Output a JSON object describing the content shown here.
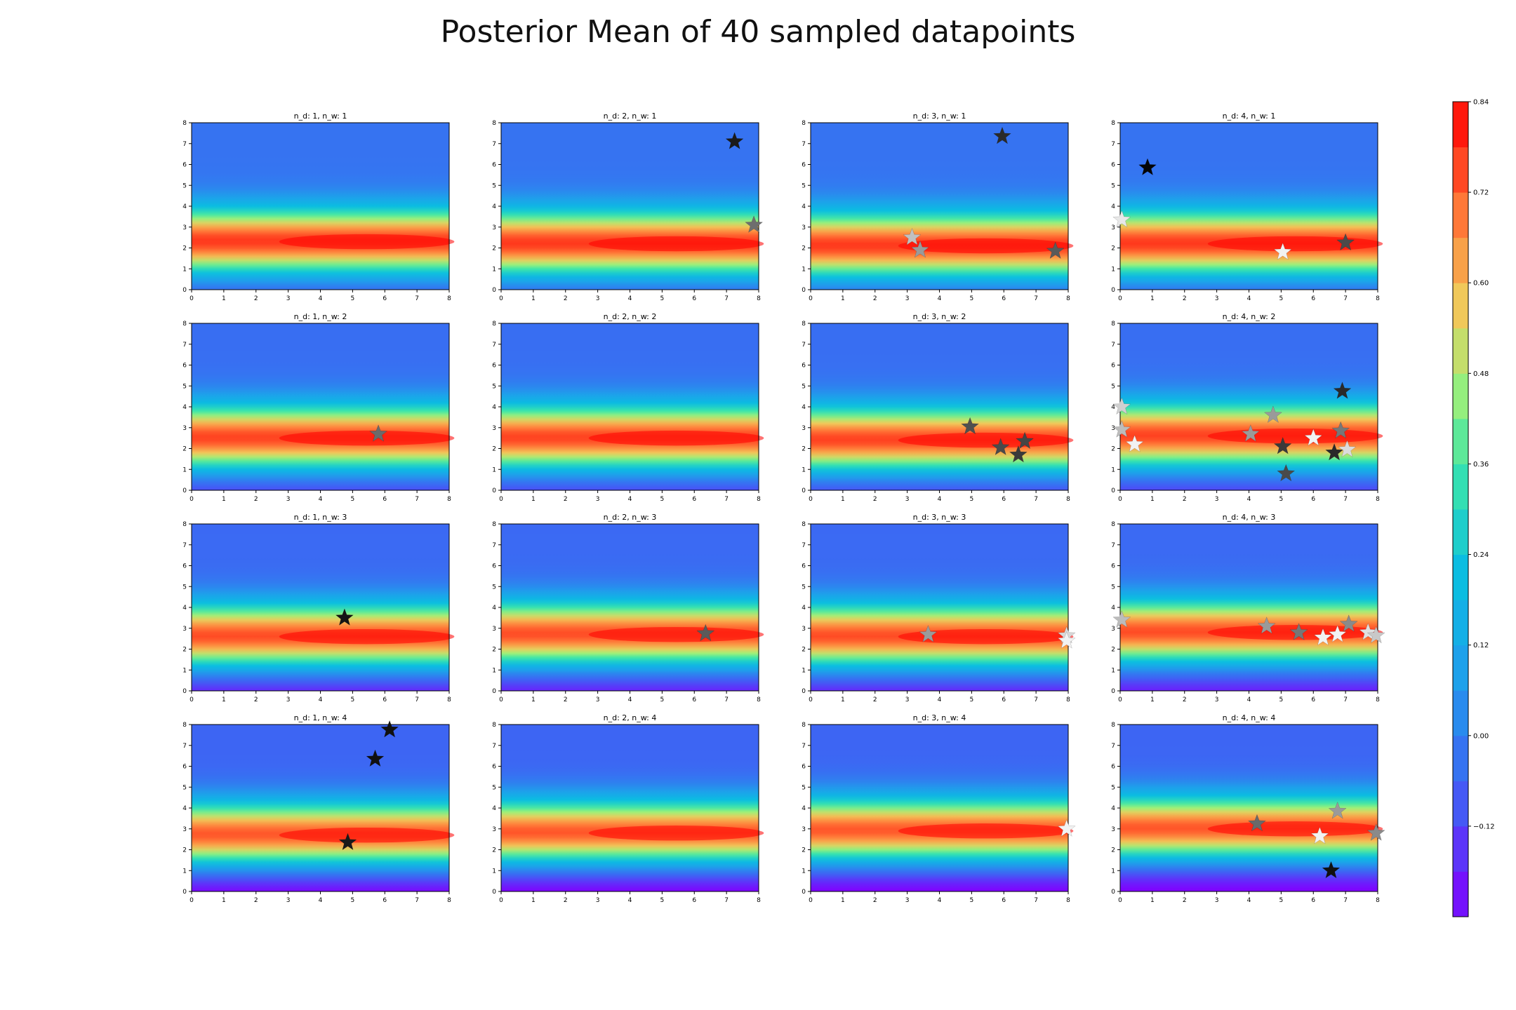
{
  "title": "Posterior Mean of 40 sampled datapoints",
  "chart_data": {
    "type": "heatmap",
    "title": "Posterior Mean of 40 sampled datapoints",
    "grid": false,
    "colormap": "rainbow",
    "xlim": [
      0,
      8
    ],
    "ylim": [
      0,
      8
    ],
    "x_ticks": [
      0,
      1,
      2,
      3,
      4,
      5,
      6,
      7,
      8
    ],
    "y_ticks": [
      0,
      1,
      2,
      3,
      4,
      5,
      6,
      7,
      8
    ],
    "colorbar": {
      "min": -0.24,
      "max": 0.84,
      "placement": "right",
      "ticks": [
        "0.84",
        "0.72",
        "0.60",
        "0.48",
        "0.36",
        "0.24",
        "0.12",
        "0.00",
        "−0.12"
      ],
      "tick_values": [
        0.84,
        0.72,
        0.6,
        0.48,
        0.36,
        0.24,
        0.12,
        0.0,
        -0.12
      ]
    },
    "panels": [
      {
        "title": "n_d: 1, n_w: 1",
        "peak_y": 2.3,
        "points": []
      },
      {
        "title": "n_d: 2, n_w: 1",
        "peak_y": 2.2,
        "points": [
          {
            "x": 7.25,
            "y": 7.1,
            "shade": "#1a1a1a"
          },
          {
            "x": 7.85,
            "y": 3.1,
            "shade": "#6e6e6e"
          }
        ]
      },
      {
        "title": "n_d: 3, n_w: 1",
        "peak_y": 2.1,
        "points": [
          {
            "x": 5.95,
            "y": 7.35,
            "shade": "#2a2a2a"
          },
          {
            "x": 3.15,
            "y": 2.5,
            "shade": "#c0c0c0"
          },
          {
            "x": 3.4,
            "y": 1.9,
            "shade": "#9a9a9a"
          },
          {
            "x": 7.6,
            "y": 1.85,
            "shade": "#5a5a5a"
          }
        ]
      },
      {
        "title": "n_d: 4, n_w: 1",
        "peak_y": 2.2,
        "points": [
          {
            "x": 0.85,
            "y": 5.85,
            "shade": "#050505"
          },
          {
            "x": 0.05,
            "y": 3.35,
            "shade": "#e8e8e8"
          },
          {
            "x": 5.05,
            "y": 1.8,
            "shade": "#f2f2f2"
          },
          {
            "x": 7.0,
            "y": 2.25,
            "shade": "#4a4a4a"
          }
        ]
      },
      {
        "title": "n_d: 1, n_w: 2",
        "peak_y": 2.5,
        "points": [
          {
            "x": 5.8,
            "y": 2.7,
            "shade": "#6a6a6a"
          }
        ]
      },
      {
        "title": "n_d: 2, n_w: 2",
        "peak_y": 2.5,
        "points": []
      },
      {
        "title": "n_d: 3, n_w: 2",
        "peak_y": 2.4,
        "points": [
          {
            "x": 4.95,
            "y": 3.05,
            "shade": "#505050"
          },
          {
            "x": 5.9,
            "y": 2.05,
            "shade": "#4a4a4a"
          },
          {
            "x": 6.45,
            "y": 1.7,
            "shade": "#3a3a3a"
          },
          {
            "x": 6.65,
            "y": 2.35,
            "shade": "#454545"
          }
        ]
      },
      {
        "title": "n_d: 4, n_w: 2",
        "peak_y": 2.6,
        "points": [
          {
            "x": 6.9,
            "y": 4.75,
            "shade": "#2a2a2a"
          },
          {
            "x": 0.05,
            "y": 4.0,
            "shade": "#d0d0d0"
          },
          {
            "x": 4.75,
            "y": 3.6,
            "shade": "#9a9a9a"
          },
          {
            "x": 0.05,
            "y": 2.9,
            "shade": "#bcbcbc"
          },
          {
            "x": 4.05,
            "y": 2.7,
            "shade": "#9a9a9a"
          },
          {
            "x": 6.85,
            "y": 2.85,
            "shade": "#777777"
          },
          {
            "x": 6.0,
            "y": 2.5,
            "shade": "#f2f2f2"
          },
          {
            "x": 0.45,
            "y": 2.2,
            "shade": "#f2f2f2"
          },
          {
            "x": 5.05,
            "y": 2.1,
            "shade": "#3a3a3a"
          },
          {
            "x": 7.05,
            "y": 1.95,
            "shade": "#dcdcdc"
          },
          {
            "x": 6.65,
            "y": 1.8,
            "shade": "#2a2a2a"
          },
          {
            "x": 5.15,
            "y": 0.8,
            "shade": "#4a4a4a"
          }
        ]
      },
      {
        "title": "n_d: 1, n_w: 3",
        "peak_y": 2.6,
        "points": [
          {
            "x": 4.75,
            "y": 3.5,
            "shade": "#151515"
          }
        ]
      },
      {
        "title": "n_d: 2, n_w: 3",
        "peak_y": 2.7,
        "points": [
          {
            "x": 6.35,
            "y": 2.75,
            "shade": "#5a5a5a"
          }
        ]
      },
      {
        "title": "n_d: 3, n_w: 3",
        "peak_y": 2.6,
        "points": [
          {
            "x": 3.65,
            "y": 2.7,
            "shade": "#9a9a9a"
          },
          {
            "x": 7.95,
            "y": 2.65,
            "shade": "#d8d8d8"
          },
          {
            "x": 7.95,
            "y": 2.4,
            "shade": "#f2f2f2"
          }
        ]
      },
      {
        "title": "n_d: 4, n_w: 3",
        "peak_y": 2.8,
        "points": [
          {
            "x": 0.05,
            "y": 3.4,
            "shade": "#bcbcbc"
          },
          {
            "x": 4.55,
            "y": 3.1,
            "shade": "#9a9a9a"
          },
          {
            "x": 7.1,
            "y": 3.2,
            "shade": "#8a8a8a"
          },
          {
            "x": 5.55,
            "y": 2.8,
            "shade": "#777777"
          },
          {
            "x": 6.3,
            "y": 2.55,
            "shade": "#f2f2f2"
          },
          {
            "x": 6.75,
            "y": 2.7,
            "shade": "#f2f2f2"
          },
          {
            "x": 7.7,
            "y": 2.8,
            "shade": "#e0e0e0"
          },
          {
            "x": 7.95,
            "y": 2.65,
            "shade": "#c8c8c8"
          }
        ]
      },
      {
        "title": "n_d: 1, n_w: 4",
        "peak_y": 2.7,
        "points": [
          {
            "x": 6.15,
            "y": 7.75,
            "shade": "#101010"
          },
          {
            "x": 5.7,
            "y": 6.35,
            "shade": "#101010"
          },
          {
            "x": 4.85,
            "y": 2.35,
            "shade": "#1a1a1a"
          }
        ]
      },
      {
        "title": "n_d: 2, n_w: 4",
        "peak_y": 2.8,
        "points": []
      },
      {
        "title": "n_d: 3, n_w: 4",
        "peak_y": 2.9,
        "points": [
          {
            "x": 7.95,
            "y": 3.0,
            "shade": "#f2f2f2"
          }
        ]
      },
      {
        "title": "n_d: 4, n_w: 4",
        "peak_y": 3.0,
        "points": [
          {
            "x": 6.75,
            "y": 3.85,
            "shade": "#9a9a9a"
          },
          {
            "x": 4.25,
            "y": 3.25,
            "shade": "#6a6a6a"
          },
          {
            "x": 6.2,
            "y": 2.65,
            "shade": "#f2f2f2"
          },
          {
            "x": 7.95,
            "y": 2.8,
            "shade": "#8a8a8a"
          },
          {
            "x": 6.55,
            "y": 1.0,
            "shade": "#101010"
          }
        ]
      }
    ]
  }
}
